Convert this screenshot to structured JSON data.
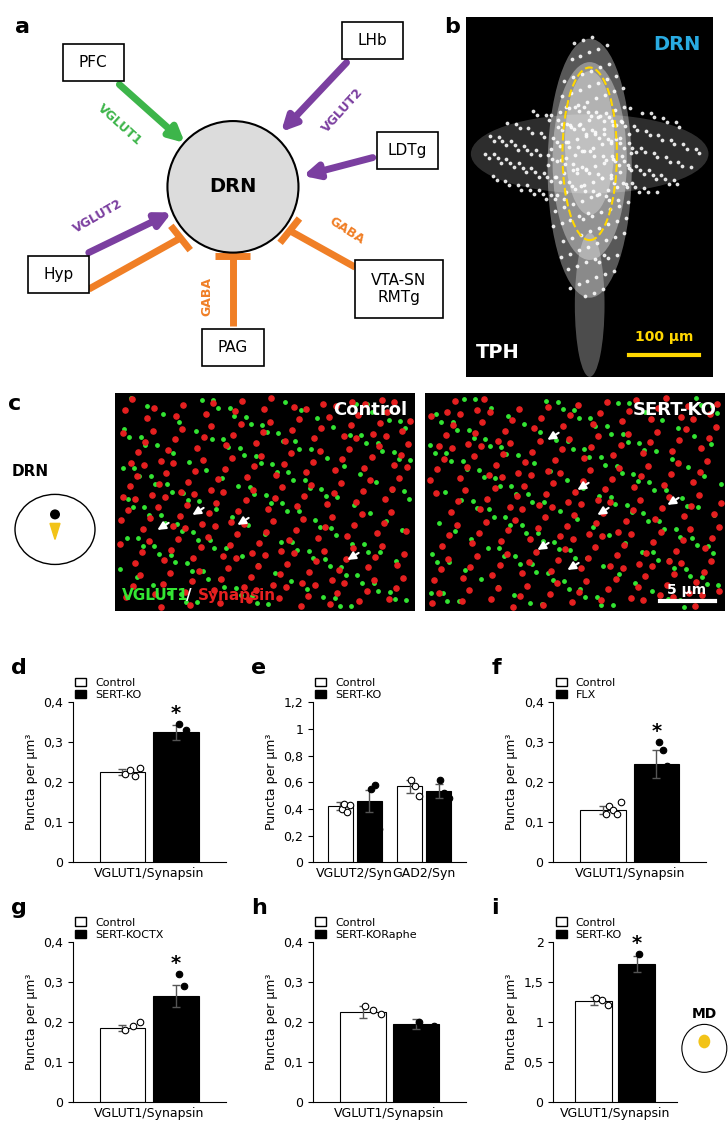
{
  "diagram": {
    "panel": "a",
    "center": "DRN",
    "nodes": [
      "PFC",
      "LHb",
      "LDTg",
      "Hyp",
      "PAG",
      "VTA-SN\nRMTg"
    ],
    "edges": [
      {
        "from": "PFC",
        "type": "excitatory",
        "label": "VGLUT1",
        "color": "#3db54a"
      },
      {
        "from": "LHb",
        "type": "excitatory",
        "label": "VGLUT2",
        "color": "#7b3fa0"
      },
      {
        "from": "LDTg",
        "type": "excitatory",
        "color": "#7b3fa0"
      },
      {
        "from": "Hyp",
        "type": "excitatory",
        "label": "VGLUT2",
        "color": "#7b3fa0"
      },
      {
        "from": "Hyp",
        "type": "inhibitory",
        "color": "#f07f26"
      },
      {
        "from": "PAG",
        "type": "inhibitory",
        "label": "GABA",
        "color": "#f07f26"
      },
      {
        "from": "VTA-SN\nRMTg",
        "type": "inhibitory",
        "label": "GABA",
        "color": "#f07f26"
      }
    ]
  },
  "micrographs": [
    {
      "panel": "b",
      "region": "DRN",
      "stain": "TPH",
      "scale_bar": "100 μm"
    },
    {
      "panel": "c",
      "region": "DRN",
      "stains": [
        "VGLUT1",
        "Synapsin"
      ],
      "separator": "/",
      "conditions": [
        "Control",
        "SERT-KO"
      ],
      "scale_bar": "5 μm"
    }
  ],
  "chart_data": [
    {
      "type": "bar",
      "panel": "d",
      "categories": [
        "VGLUT1/Synapsin"
      ],
      "y_label": "Puncta per µm³",
      "ylim": [
        0,
        0.4
      ],
      "yticks": [
        0,
        {
          "value": 0.1,
          "label": "0,1"
        },
        {
          "value": 0.2,
          "label": "0,2"
        },
        {
          "value": 0.3,
          "label": "0,3"
        },
        {
          "value": 0.4,
          "label": "0,4"
        }
      ],
      "legend": "upper left",
      "series": [
        {
          "name": "Control",
          "color": "#ffffff",
          "marker": "o",
          "values": [
            0.225
          ],
          "errors": [
            0.008
          ],
          "points": [
            [
              0.22,
              0.23,
              0.215,
              0.235
            ]
          ]
        },
        {
          "name": "SERT-KO",
          "color": "#000000",
          "marker": "o",
          "values": [
            0.325
          ],
          "errors": [
            0.018
          ],
          "points": [
            [
              0.345,
              0.33,
              0.31
            ]
          ]
        }
      ],
      "significance": [
        {
          "series": 1,
          "category": 0,
          "text": "*"
        }
      ]
    },
    {
      "type": "bar",
      "panel": "e",
      "categories": [
        "VGLUT2/Syn",
        "GAD2/Syn"
      ],
      "y_label": "Puncta per µm³",
      "ylim": [
        0,
        1.2
      ],
      "yticks": [
        0,
        {
          "value": 0.2,
          "label": "0,2"
        },
        {
          "value": 0.4,
          "label": "0,4"
        },
        {
          "value": 0.6,
          "label": "0,6"
        },
        {
          "value": 0.8,
          "label": "0,8"
        },
        1,
        {
          "value": 1.2,
          "label": "1,2"
        }
      ],
      "legend": "upper left",
      "series": [
        {
          "name": "Control",
          "color": "#ffffff",
          "marker": "o",
          "values": [
            0.42,
            0.57
          ],
          "errors": [
            0.03,
            0.05
          ],
          "points": [
            [
              0.4,
              0.44,
              0.38,
              0.43
            ],
            [
              0.62,
              0.57,
              0.5
            ]
          ]
        },
        {
          "name": "SERT-KO",
          "color": "#000000",
          "marker": "o",
          "values": [
            0.46,
            0.535
          ],
          "errors": [
            0.08,
            0.05
          ],
          "points": [
            [
              0.55,
              0.58,
              0.25
            ],
            [
              0.62,
              0.52,
              0.48
            ]
          ]
        }
      ]
    },
    {
      "type": "bar",
      "panel": "f",
      "categories": [
        "VGLUT1/Synapsin"
      ],
      "y_label": "Puncta per µm³",
      "ylim": [
        0,
        0.4
      ],
      "yticks": [
        0,
        {
          "value": 0.1,
          "label": "0,1"
        },
        {
          "value": 0.2,
          "label": "0,2"
        },
        {
          "value": 0.3,
          "label": "0,3"
        },
        {
          "value": 0.4,
          "label": "0,4"
        }
      ],
      "legend": "upper left",
      "series": [
        {
          "name": "Control",
          "color": "#ffffff",
          "marker": "o",
          "values": [
            0.13
          ],
          "errors": [
            0.01
          ],
          "points": [
            [
              0.12,
              0.14,
              0.13,
              0.12,
              0.15
            ]
          ]
        },
        {
          "name": "FLX",
          "color": "#000000",
          "marker": "o",
          "values": [
            0.245
          ],
          "errors": [
            0.035
          ],
          "points": [
            [
              0.3,
              0.28,
              0.24,
              0.18,
              0.13
            ]
          ]
        }
      ],
      "significance": [
        {
          "series": 1,
          "category": 0,
          "text": "*"
        }
      ]
    },
    {
      "type": "bar",
      "panel": "g",
      "categories": [
        "VGLUT1/Synapsin"
      ],
      "y_label": "Puncta per µm³",
      "ylim": [
        0,
        0.4
      ],
      "yticks": [
        0,
        {
          "value": 0.1,
          "label": "0,1"
        },
        {
          "value": 0.2,
          "label": "0,2"
        },
        {
          "value": 0.3,
          "label": "0,3"
        },
        {
          "value": 0.4,
          "label": "0,4"
        }
      ],
      "legend": "upper left",
      "series": [
        {
          "name": "Control",
          "color": "#ffffff",
          "marker": "o",
          "values": [
            0.185
          ],
          "errors": [
            0.008
          ],
          "points": [
            [
              0.18,
              0.19,
              0.2
            ]
          ]
        },
        {
          "name": "SERT-KOCTX",
          "color": "#000000",
          "marker": "o",
          "values": [
            0.265
          ],
          "errors": [
            0.028
          ],
          "points": [
            [
              0.32,
              0.29,
              0.25,
              0.22
            ]
          ]
        }
      ],
      "significance": [
        {
          "series": 1,
          "category": 0,
          "text": "*"
        }
      ]
    },
    {
      "type": "bar",
      "panel": "h",
      "categories": [
        "VGLUT1/Synapsin"
      ],
      "y_label": "Puncta per µm³",
      "ylim": [
        0,
        0.4
      ],
      "yticks": [
        0,
        {
          "value": 0.1,
          "label": "0,1"
        },
        {
          "value": 0.2,
          "label": "0,2"
        },
        {
          "value": 0.3,
          "label": "0,3"
        },
        {
          "value": 0.4,
          "label": "0,4"
        }
      ],
      "legend": "upper left",
      "series": [
        {
          "name": "Control",
          "color": "#ffffff",
          "marker": "o",
          "values": [
            0.225
          ],
          "errors": [
            0.015
          ],
          "points": [
            [
              0.24,
              0.23,
              0.22
            ]
          ]
        },
        {
          "name": "SERT-KORaphe",
          "color": "#000000",
          "marker": "o",
          "values": [
            0.195
          ],
          "errors": [
            0.012
          ],
          "points": [
            [
              0.2,
              0.18,
              0.19
            ]
          ]
        }
      ]
    },
    {
      "type": "bar",
      "panel": "i",
      "categories": [
        "VGLUT1/Synapsin"
      ],
      "y_label": "Puncta per µm³",
      "region": "MD",
      "ylim": [
        0,
        2
      ],
      "yticks": [
        0,
        {
          "value": 0.5,
          "label": "0,5"
        },
        1,
        {
          "value": 1.5,
          "label": "1,5"
        },
        2
      ],
      "legend": "upper left",
      "series": [
        {
          "name": "Control",
          "color": "#ffffff",
          "marker": "o",
          "values": [
            1.27
          ],
          "errors": [
            0.05
          ],
          "points": [
            [
              1.3,
              1.28,
              1.22
            ]
          ]
        },
        {
          "name": "SERT-KO",
          "color": "#000000",
          "marker": "o",
          "values": [
            1.73
          ],
          "errors": [
            0.1
          ],
          "points": [
            [
              1.85,
              1.65
            ]
          ]
        }
      ],
      "significance": [
        {
          "series": 1,
          "category": 0,
          "text": "*"
        }
      ]
    }
  ]
}
